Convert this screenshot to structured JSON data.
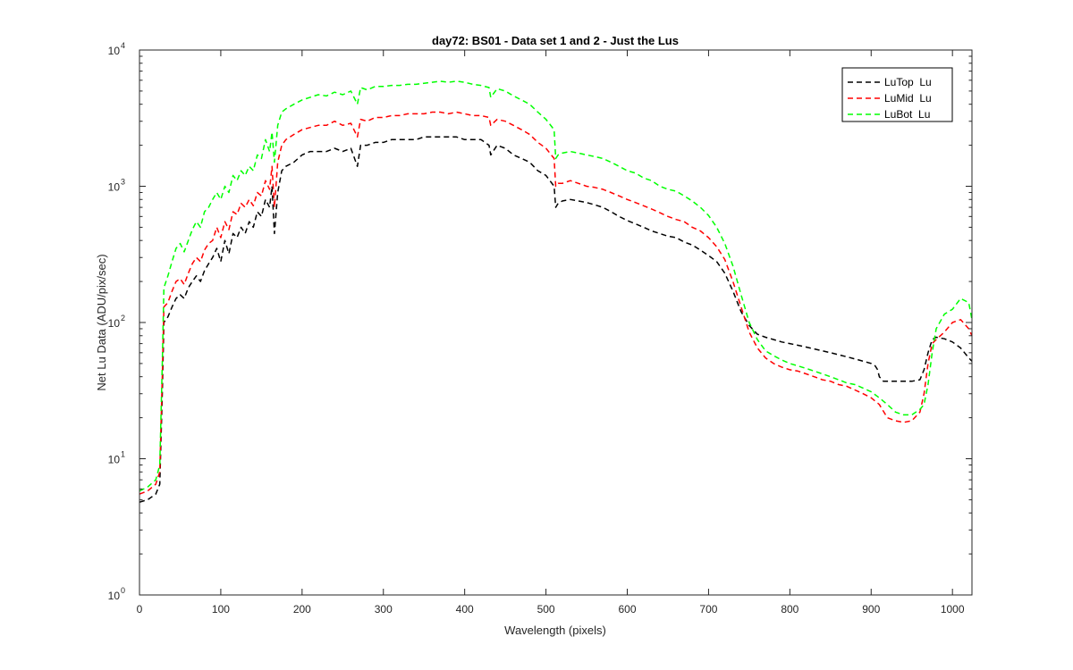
{
  "chart_data": {
    "type": "line",
    "title": "day72: BS01 - Data set 1 and 2 - Just the Lus",
    "xlabel": "Wavelength (pixels)",
    "ylabel": "Net Lu Data (ADU/pix/sec)",
    "xlim": [
      0,
      1024
    ],
    "ylim": [
      1,
      10000
    ],
    "yscale": "log",
    "grid": false,
    "legend_position": "top-right",
    "xticks": [
      {
        "value": 0,
        "label": "0"
      },
      {
        "value": 100,
        "label": "100"
      },
      {
        "value": 200,
        "label": "200"
      },
      {
        "value": 300,
        "label": "300"
      },
      {
        "value": 400,
        "label": "400"
      },
      {
        "value": 500,
        "label": "500"
      },
      {
        "value": 600,
        "label": "600"
      },
      {
        "value": 700,
        "label": "700"
      },
      {
        "value": 800,
        "label": "800"
      },
      {
        "value": 900,
        "label": "900"
      },
      {
        "value": 1000,
        "label": "1000"
      }
    ],
    "yticks": [
      {
        "value": 1,
        "base": "10",
        "exp": "0"
      },
      {
        "value": 10,
        "base": "10",
        "exp": "1"
      },
      {
        "value": 100,
        "base": "10",
        "exp": "2"
      },
      {
        "value": 1000,
        "base": "10",
        "exp": "3"
      },
      {
        "value": 10000,
        "base": "10",
        "exp": "4"
      }
    ],
    "series": [
      {
        "name": "LuTop  Lu",
        "color": "#000000",
        "x": [
          0,
          10,
          20,
          25,
          28,
          30,
          35,
          40,
          45,
          50,
          55,
          60,
          65,
          70,
          75,
          80,
          85,
          90,
          95,
          100,
          105,
          110,
          115,
          120,
          125,
          130,
          135,
          140,
          145,
          150,
          155,
          160,
          163,
          166,
          170,
          175,
          180,
          190,
          200,
          210,
          220,
          230,
          240,
          250,
          260,
          268,
          272,
          280,
          290,
          300,
          310,
          320,
          330,
          340,
          350,
          360,
          370,
          380,
          390,
          400,
          410,
          420,
          430,
          432,
          440,
          450,
          460,
          470,
          480,
          490,
          500,
          510,
          512,
          515,
          520,
          530,
          540,
          550,
          560,
          570,
          580,
          590,
          600,
          610,
          620,
          630,
          640,
          650,
          660,
          670,
          680,
          690,
          700,
          710,
          720,
          730,
          740,
          750,
          760,
          770,
          780,
          790,
          800,
          810,
          820,
          830,
          840,
          850,
          860,
          870,
          880,
          890,
          900,
          905,
          908,
          910,
          915,
          920,
          930,
          940,
          950,
          960,
          965,
          970,
          975,
          980,
          990,
          1000,
          1010,
          1020,
          1024
        ],
        "y": [
          4.8,
          5.0,
          5.5,
          6.5,
          30,
          100,
          110,
          130,
          150,
          160,
          150,
          180,
          200,
          220,
          200,
          240,
          270,
          300,
          350,
          280,
          400,
          320,
          450,
          420,
          500,
          450,
          550,
          500,
          650,
          600,
          800,
          700,
          1000,
          450,
          900,
          1300,
          1400,
          1500,
          1700,
          1800,
          1800,
          1800,
          1900,
          1800,
          1900,
          1400,
          2000,
          2000,
          2100,
          2100,
          2200,
          2200,
          2200,
          2200,
          2300,
          2300,
          2300,
          2300,
          2300,
          2200,
          2200,
          2200,
          2000,
          1700,
          2000,
          1900,
          1700,
          1600,
          1500,
          1300,
          1200,
          1000,
          700,
          750,
          780,
          800,
          780,
          760,
          730,
          700,
          650,
          600,
          560,
          530,
          500,
          470,
          450,
          430,
          420,
          390,
          370,
          340,
          310,
          280,
          230,
          170,
          120,
          95,
          82,
          78,
          75,
          72,
          70,
          68,
          66,
          64,
          62,
          60,
          58,
          56,
          54,
          52,
          50,
          48,
          45,
          40,
          37,
          37,
          37,
          37,
          37,
          38,
          45,
          60,
          75,
          78,
          76,
          72,
          65,
          55,
          52
        ]
      },
      {
        "name": "LuMid  Lu",
        "color": "#ff0000",
        "x": [
          0,
          10,
          20,
          25,
          28,
          30,
          35,
          40,
          45,
          50,
          55,
          60,
          65,
          70,
          75,
          80,
          85,
          90,
          95,
          100,
          105,
          110,
          115,
          120,
          125,
          130,
          135,
          140,
          145,
          150,
          155,
          160,
          163,
          166,
          170,
          175,
          180,
          190,
          200,
          210,
          220,
          230,
          240,
          250,
          260,
          268,
          272,
          280,
          290,
          300,
          310,
          320,
          330,
          340,
          350,
          360,
          370,
          380,
          390,
          400,
          410,
          420,
          430,
          432,
          440,
          450,
          460,
          470,
          480,
          490,
          500,
          510,
          512,
          515,
          520,
          530,
          540,
          550,
          560,
          570,
          580,
          590,
          600,
          610,
          620,
          630,
          640,
          650,
          660,
          670,
          680,
          690,
          700,
          710,
          720,
          730,
          740,
          750,
          760,
          770,
          780,
          790,
          800,
          810,
          820,
          830,
          840,
          850,
          860,
          870,
          880,
          890,
          900,
          910,
          920,
          930,
          940,
          950,
          960,
          965,
          970,
          975,
          980,
          990,
          1000,
          1010,
          1020,
          1024
        ],
        "y": [
          5.5,
          5.8,
          6.5,
          8,
          40,
          130,
          140,
          170,
          200,
          210,
          190,
          230,
          270,
          300,
          280,
          340,
          380,
          400,
          500,
          420,
          550,
          480,
          650,
          620,
          750,
          700,
          800,
          720,
          900,
          850,
          1100,
          950,
          1400,
          700,
          1500,
          2000,
          2200,
          2400,
          2600,
          2700,
          2800,
          2800,
          3000,
          2800,
          2900,
          2300,
          3100,
          3000,
          3200,
          3200,
          3300,
          3300,
          3400,
          3400,
          3400,
          3500,
          3500,
          3400,
          3500,
          3400,
          3300,
          3300,
          3200,
          2800,
          3100,
          3000,
          2800,
          2600,
          2400,
          2100,
          1900,
          1600,
          1000,
          1050,
          1050,
          1100,
          1050,
          1000,
          980,
          950,
          900,
          850,
          800,
          760,
          720,
          680,
          640,
          600,
          570,
          550,
          500,
          470,
          420,
          360,
          290,
          200,
          130,
          85,
          65,
          55,
          50,
          47,
          45,
          44,
          42,
          40,
          38,
          37,
          35,
          34,
          32,
          30,
          28,
          25,
          20,
          19,
          18.5,
          19,
          22,
          30,
          50,
          70,
          75,
          85,
          100,
          105,
          90,
          80
        ]
      },
      {
        "name": "LuBot  Lu",
        "color": "#00ff00",
        "x": [
          0,
          10,
          20,
          25,
          28,
          30,
          35,
          40,
          45,
          50,
          55,
          60,
          65,
          70,
          75,
          80,
          85,
          90,
          95,
          100,
          105,
          110,
          115,
          120,
          125,
          130,
          135,
          140,
          145,
          150,
          155,
          160,
          163,
          166,
          170,
          175,
          180,
          190,
          200,
          210,
          220,
          230,
          240,
          250,
          260,
          268,
          272,
          280,
          290,
          300,
          310,
          320,
          330,
          340,
          350,
          360,
          370,
          380,
          390,
          400,
          410,
          420,
          430,
          432,
          440,
          450,
          460,
          470,
          480,
          490,
          500,
          510,
          512,
          515,
          520,
          530,
          540,
          550,
          560,
          570,
          580,
          590,
          600,
          610,
          620,
          630,
          640,
          650,
          660,
          670,
          680,
          690,
          700,
          710,
          720,
          730,
          740,
          750,
          760,
          770,
          780,
          790,
          800,
          810,
          820,
          830,
          840,
          850,
          860,
          870,
          880,
          890,
          900,
          910,
          920,
          930,
          940,
          950,
          960,
          965,
          970,
          975,
          980,
          990,
          1000,
          1010,
          1020,
          1024
        ],
        "y": [
          5.8,
          6.2,
          7,
          9,
          50,
          180,
          220,
          280,
          350,
          380,
          330,
          400,
          480,
          550,
          500,
          650,
          700,
          800,
          900,
          800,
          1000,
          900,
          1200,
          1100,
          1300,
          1200,
          1400,
          1300,
          1700,
          1600,
          2200,
          1800,
          2500,
          1500,
          2800,
          3500,
          3700,
          4000,
          4300,
          4500,
          4700,
          4600,
          4900,
          4700,
          5000,
          4000,
          5300,
          5100,
          5400,
          5400,
          5500,
          5500,
          5600,
          5600,
          5700,
          5800,
          5900,
          5800,
          5900,
          5800,
          5600,
          5500,
          5300,
          4500,
          5200,
          5000,
          4600,
          4300,
          4000,
          3500,
          3100,
          2600,
          1600,
          1700,
          1750,
          1800,
          1750,
          1700,
          1650,
          1600,
          1500,
          1400,
          1300,
          1250,
          1150,
          1100,
          1000,
          950,
          920,
          850,
          780,
          700,
          610,
          500,
          380,
          260,
          160,
          100,
          75,
          62,
          57,
          53,
          50,
          48,
          46,
          44,
          42,
          40,
          38,
          36,
          35,
          33,
          31,
          28,
          25,
          22,
          21,
          21,
          23,
          25,
          35,
          60,
          90,
          115,
          125,
          150,
          140,
          105
        ]
      }
    ]
  }
}
